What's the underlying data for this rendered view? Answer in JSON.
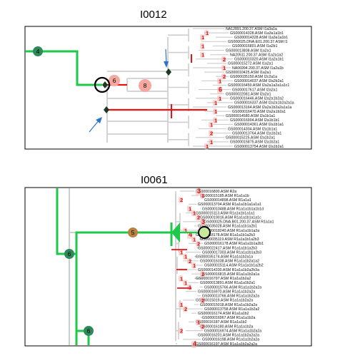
{
  "panels": [
    {
      "title": "I0012",
      "node_labels": [
        "4",
        "6",
        "8"
      ],
      "leaves": [
        "NA12891.200.37.ASM I1a3a1a",
        "GS000014328.ASM I1a3a1a1b1",
        "GS000014328.ASM I1a3a1a1b1",
        "GS000025.DNA.E01.200.37.ASM I1",
        "GS000016801.ASM I1a2b1",
        "GS000013808.ASM I1a2a1",
        "NA20511.200.37.ASM I1a2a1a2",
        "GS000010320.ASM I1a2a1b1",
        "GS000015272.ASM I1a2a1",
        "NA06994.200.37.ASM I1a2a1b",
        "GS000010425.ASM I1a2a1",
        "GS000035150.ASM I2c2a1a",
        "GS000014037.ASM I2a2b2a1",
        "GS000016450.ASM I2a2a1a2a1a1c1",
        "GS000017617.ASM I2a2a1",
        "GS000022081.ASM I2a2a1",
        "GS000016446.ASM I2a2a1b2a2",
        "GS000016337.ASM I2a2a1b2a2a1a",
        "GS000013164.ASM I2a2a1b2a2a1a1a",
        "GS000016470.ASM I2a2a1b2a1",
        "GS000014580.ASM I2a1b1a1",
        "GS000016904.ASM I2a1b1b1",
        "GS000014361.ASM I2a1b1a1",
        "GS000014304.ASM I2a1b1a1",
        "GS000013764.ASM I2a1b2a1",
        "GS000015225.ASM I2a1b2a1",
        "GS000015875.ASM I2a1b2a1",
        "GS000013754.ASM I2a1b2a1"
      ],
      "counts": [
        "1",
        "2",
        "1",
        "1",
        "1",
        "1",
        "1",
        "1",
        "6",
        "1",
        "2",
        "1",
        "1",
        "2",
        "1",
        "1",
        "1"
      ]
    },
    {
      "title": "I0061",
      "node_labels": [
        "6",
        "5",
        "6"
      ],
      "leaves": [
        "GS000016800.ASM R2a",
        "GS000015185.ASM R1a1a1b",
        "GS000014898.ASM R1a1a1",
        "GS000013704.ASM R1a1a1b1a1a1a1",
        "GS000010488.ASM R1a1a1b1a1b1d",
        "GS000015113.ASM R1a1a1b1a1a1",
        "GS000019016.ASM R1a1a1b1a1a1c",
        "GS000025.DNA.B01.200.37.ASM R1a1a1",
        "GS000035028.ASM R1a1a1b1a2b1",
        "GS000018240.ASM R1a1a1b1a2a",
        "GS000018178.ASM R1a1a1b1a2b3",
        "GS000035119.ASM R1a1a1b1a2b3",
        "GS000016178.ASM R1a1a1b1a2b1",
        "GS000022417.ASM R1a1a1b1a2b3",
        "GS000017303.ASM R1a1a1b1a2b3",
        "GS000035174.ASM R1a1a1b2a1a",
        "GS000016338.ASM R1a1a1b2a1a2",
        "GS000015114.ASM R1a1a1b1a2b2",
        "GS000014330.ASM R1a1a1b2a2b3a",
        "GS000016815.ASM R1a1a1b2a1a",
        "GS000016797.ASM R1a1a1b2a2",
        "GS000013891.ASM R1a1a1b2a1",
        "GS000015766.ASM R1a1a1b2a2a",
        "GS000016970.ASM R1a1a1b2a2a",
        "GS000013766.ASM R1a1a1b2a2a",
        "GS000015019.ASM R1a1a1b2a2a",
        "GS000015018.ASM R1a1a1b2a2a",
        "GS000013758.ASM R1a1a1b2a2",
        "GS000016174.ASM R1a1a1b2",
        "GS000016967.ASM R1a1a1b2a",
        "GS000016187.ASM R1a1a1b2",
        "GS000016180.ASM R1a1a1b2a",
        "GS000016974.ASM R1a1a1b2a2a",
        "GS000016201.ASM R1a1a1b2a2a2a",
        "GS000016198.ASM R1a1a1b2a2a",
        "GS000016197.ASM R1a1a1b2a2a2a"
      ],
      "counts": [
        "2",
        "3",
        "2",
        "1",
        "1",
        "2",
        "2",
        "1",
        "2",
        "1",
        "2",
        "1",
        "1",
        "2",
        "3",
        "1",
        "4",
        "1",
        "1",
        "2",
        "1",
        "4",
        "1",
        "1",
        "1",
        "2"
      ]
    }
  ]
}
